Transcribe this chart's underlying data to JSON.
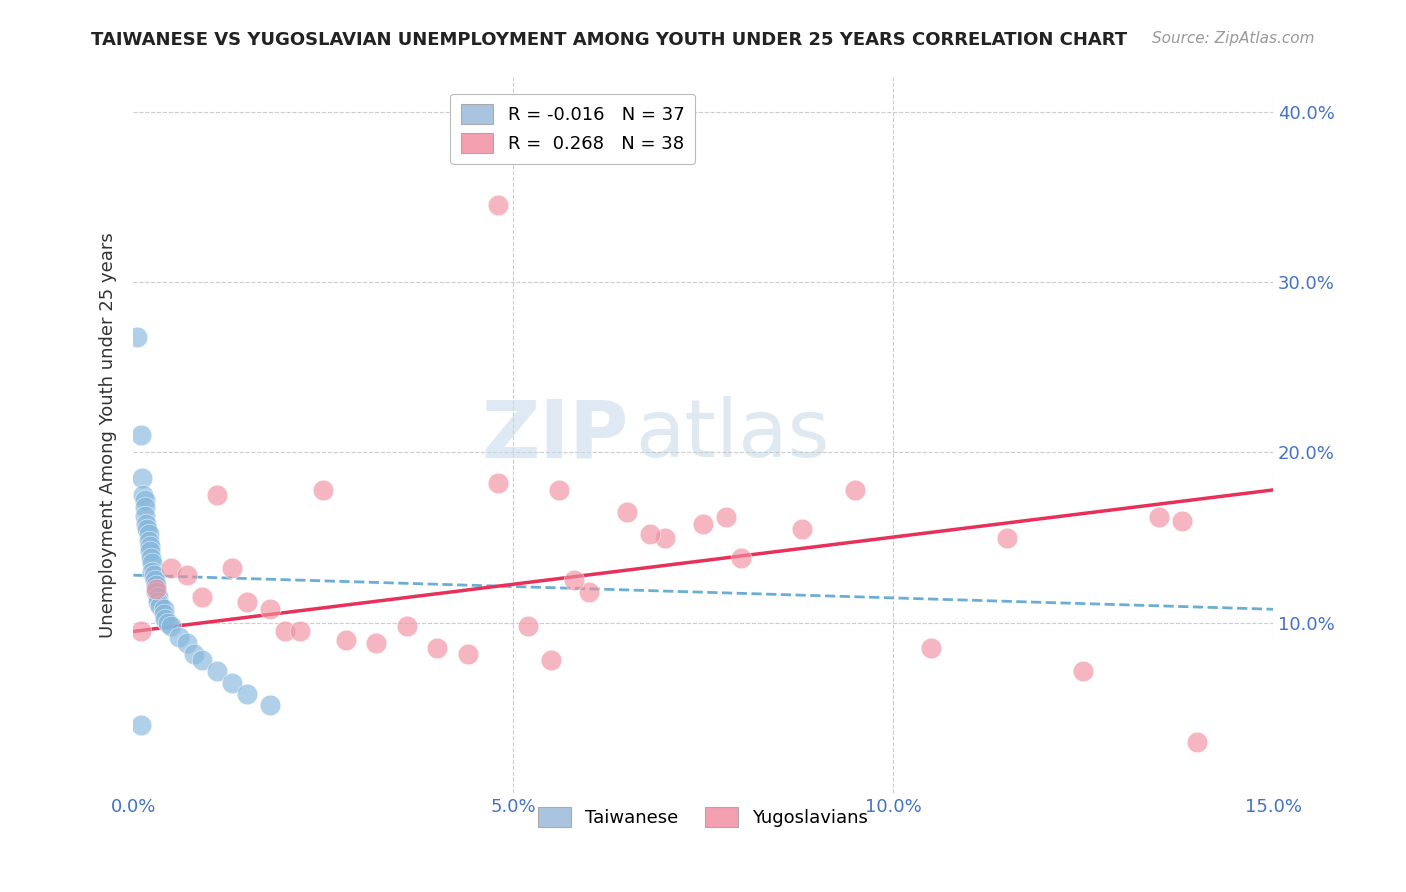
{
  "title": "TAIWANESE VS YUGOSLAVIAN UNEMPLOYMENT AMONG YOUTH UNDER 25 YEARS CORRELATION CHART",
  "source": "Source: ZipAtlas.com",
  "ylabel": "Unemployment Among Youth under 25 years",
  "xlim": [
    0.0,
    0.15
  ],
  "ylim": [
    0.0,
    0.42
  ],
  "xlabel_vals": [
    0.0,
    0.05,
    0.1,
    0.15
  ],
  "xlabel_ticks": [
    "0.0%",
    "5.0%",
    "10.0%",
    "15.0%"
  ],
  "ylabel_vals": [
    0.1,
    0.2,
    0.3,
    0.4
  ],
  "ylabel_ticks": [
    "10.0%",
    "20.0%",
    "30.0%",
    "40.0%"
  ],
  "taiwanese_x": [
    0.0005,
    0.001,
    0.0012,
    0.0013,
    0.0015,
    0.0015,
    0.0016,
    0.0017,
    0.0018,
    0.002,
    0.002,
    0.0022,
    0.0022,
    0.0023,
    0.0025,
    0.0025,
    0.0027,
    0.0028,
    0.003,
    0.003,
    0.0032,
    0.0033,
    0.0035,
    0.004,
    0.004,
    0.0042,
    0.0045,
    0.005,
    0.006,
    0.007,
    0.008,
    0.009,
    0.011,
    0.013,
    0.015,
    0.018,
    0.001
  ],
  "taiwanese_y": [
    0.268,
    0.21,
    0.185,
    0.175,
    0.172,
    0.168,
    0.163,
    0.158,
    0.155,
    0.152,
    0.148,
    0.145,
    0.142,
    0.138,
    0.135,
    0.13,
    0.128,
    0.125,
    0.122,
    0.118,
    0.115,
    0.112,
    0.11,
    0.108,
    0.105,
    0.102,
    0.1,
    0.098,
    0.092,
    0.088,
    0.082,
    0.078,
    0.072,
    0.065,
    0.058,
    0.052,
    0.04
  ],
  "yugoslavian_x": [
    0.001,
    0.003,
    0.005,
    0.007,
    0.009,
    0.011,
    0.013,
    0.015,
    0.018,
    0.02,
    0.022,
    0.025,
    0.028,
    0.032,
    0.036,
    0.04,
    0.044,
    0.048,
    0.052,
    0.056,
    0.06,
    0.065,
    0.07,
    0.075,
    0.08,
    0.088,
    0.095,
    0.105,
    0.115,
    0.125,
    0.135,
    0.048,
    0.058,
    0.068,
    0.078,
    0.055,
    0.138,
    0.14
  ],
  "yugoslavian_y": [
    0.095,
    0.12,
    0.132,
    0.128,
    0.115,
    0.175,
    0.132,
    0.112,
    0.108,
    0.095,
    0.095,
    0.178,
    0.09,
    0.088,
    0.098,
    0.085,
    0.082,
    0.182,
    0.098,
    0.178,
    0.118,
    0.165,
    0.15,
    0.158,
    0.138,
    0.155,
    0.178,
    0.085,
    0.15,
    0.072,
    0.162,
    0.345,
    0.125,
    0.152,
    0.162,
    0.078,
    0.16,
    0.03
  ],
  "tw_line_x": [
    0.0,
    0.15
  ],
  "tw_line_y": [
    0.128,
    0.108
  ],
  "yu_line_x": [
    0.0,
    0.15
  ],
  "yu_line_y": [
    0.095,
    0.178
  ],
  "scatter_color_tw": "#85b8dc",
  "scatter_color_yu": "#f090a0",
  "line_color_tw": "#6aaed6",
  "line_color_yu": "#e8305a",
  "grid_color": "#cccccc",
  "bg_color": "#ffffff",
  "tick_color": "#4472c4",
  "ylabel_color": "#333333",
  "title_fontsize": 13,
  "source_fontsize": 11,
  "tick_fontsize": 13,
  "ylabel_fontsize": 13,
  "legend_top_entries": [
    {
      "label": "R = -0.016   N = 37",
      "fc": "#aac4e0"
    },
    {
      "label": "R =  0.268   N = 38",
      "fc": "#f4a0b0"
    }
  ],
  "legend_bottom_entries": [
    {
      "label": "Taiwanese",
      "fc": "#aac4e0"
    },
    {
      "label": "Yugoslavians",
      "fc": "#f4a0b0"
    }
  ]
}
